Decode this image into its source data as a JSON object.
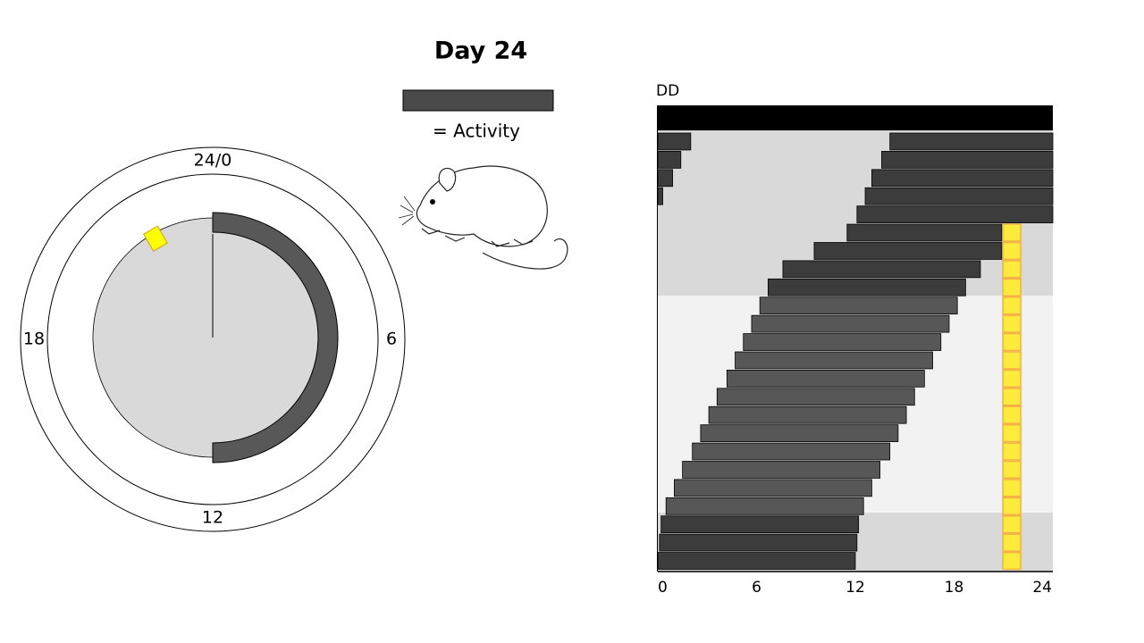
{
  "title": "Day 24",
  "legend": {
    "label": "= Activity",
    "color": "#4a4a4a"
  },
  "clock": {
    "labels": [
      {
        "value": 0,
        "label": "24/0"
      },
      6,
      12,
      18
    ],
    "activity_hours": [
      0,
      12
    ],
    "activity_color": "#585858",
    "hand_hour": 0,
    "marker_hour": 22
  },
  "chart_data": {
    "type": "actogram",
    "title": "DD",
    "xlim": [
      0,
      24
    ],
    "xticks": [
      0,
      6,
      12,
      18,
      24
    ],
    "days": [
      {
        "color": "#3c3c3c",
        "segments": [
          [
            14.1,
            24
          ],
          [
            0,
            2.0
          ]
        ]
      },
      {
        "color": "#3c3c3c",
        "segments": [
          [
            13.6,
            24
          ],
          [
            0,
            1.4
          ]
        ]
      },
      {
        "color": "#3c3c3c",
        "segments": [
          [
            13.0,
            24
          ],
          [
            0,
            0.9
          ]
        ]
      },
      {
        "color": "#3c3c3c",
        "segments": [
          [
            12.6,
            24
          ],
          [
            0,
            0.3
          ]
        ]
      },
      {
        "color": "#3c3c3c",
        "segments": [
          [
            12.1,
            24
          ]
        ]
      },
      {
        "color": "#3c3c3c",
        "segments": [
          [
            11.5,
            20.9
          ]
        ]
      },
      {
        "color": "#3c3c3c",
        "segments": [
          [
            9.5,
            20.9
          ]
        ]
      },
      {
        "color": "#3c3c3c",
        "segments": [
          [
            7.6,
            19.6
          ]
        ]
      },
      {
        "color": "#3c3c3c",
        "segments": [
          [
            6.7,
            18.7
          ]
        ]
      },
      {
        "color": "#575757",
        "segments": [
          [
            6.2,
            18.2
          ]
        ]
      },
      {
        "color": "#575757",
        "segments": [
          [
            5.7,
            17.7
          ]
        ]
      },
      {
        "color": "#575757",
        "segments": [
          [
            5.2,
            17.2
          ]
        ]
      },
      {
        "color": "#575757",
        "segments": [
          [
            4.7,
            16.7
          ]
        ]
      },
      {
        "color": "#575757",
        "segments": [
          [
            4.2,
            16.2
          ]
        ]
      },
      {
        "color": "#575757",
        "segments": [
          [
            3.6,
            15.6
          ]
        ]
      },
      {
        "color": "#575757",
        "segments": [
          [
            3.1,
            15.1
          ]
        ]
      },
      {
        "color": "#575757",
        "segments": [
          [
            2.6,
            14.6
          ]
        ]
      },
      {
        "color": "#575757",
        "segments": [
          [
            2.1,
            14.1
          ]
        ]
      },
      {
        "color": "#575757",
        "segments": [
          [
            1.5,
            13.5
          ]
        ]
      },
      {
        "color": "#575757",
        "segments": [
          [
            1.0,
            13.0
          ]
        ]
      },
      {
        "color": "#575757",
        "segments": [
          [
            0.5,
            12.5
          ]
        ]
      },
      {
        "color": "#3c3c3c",
        "segments": [
          [
            0.2,
            12.2
          ]
        ]
      },
      {
        "color": "#3c3c3c",
        "segments": [
          [
            0.1,
            12.1
          ]
        ]
      },
      {
        "color": "#3c3c3c",
        "segments": [
          [
            0,
            12.0
          ]
        ]
      }
    ]
  }
}
